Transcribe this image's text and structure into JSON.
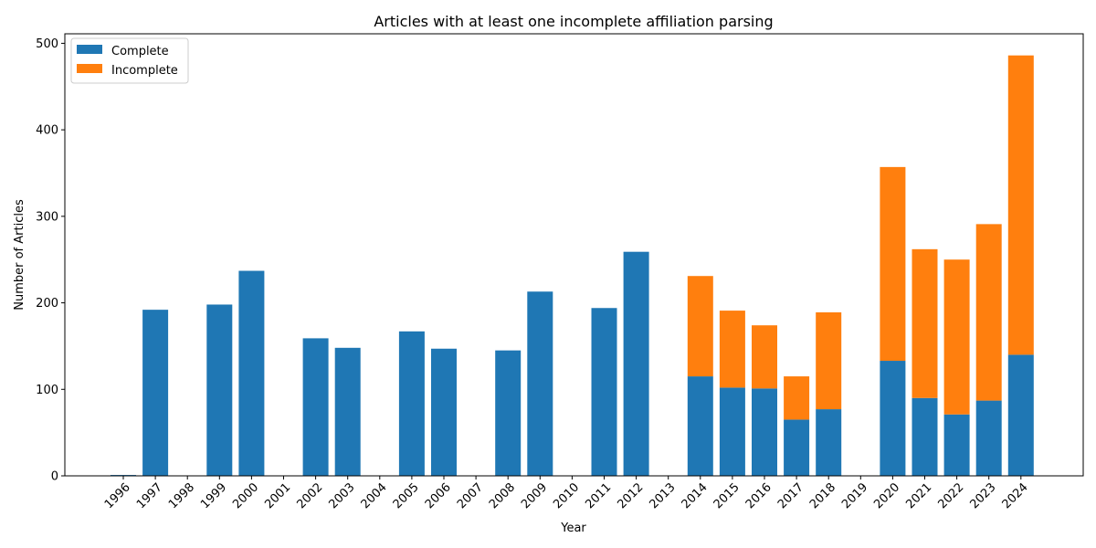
{
  "chart_data": {
    "type": "bar",
    "stacked": true,
    "title": "Articles with at least one incomplete affiliation parsing",
    "xlabel": "Year",
    "ylabel": "Number of Articles",
    "categories": [
      "1996",
      "1997",
      "1998",
      "1999",
      "2000",
      "2001",
      "2002",
      "2003",
      "2004",
      "2005",
      "2006",
      "2007",
      "2008",
      "2009",
      "2010",
      "2011",
      "2012",
      "2013",
      "2014",
      "2015",
      "2016",
      "2017",
      "2018",
      "2019",
      "2020",
      "2021",
      "2022",
      "2023",
      "2024"
    ],
    "series": [
      {
        "name": "Complete",
        "color": "#1f77b4",
        "values": [
          1,
          192,
          0,
          198,
          237,
          0,
          159,
          148,
          0,
          167,
          147,
          0,
          145,
          213,
          0,
          194,
          259,
          0,
          115,
          102,
          101,
          65,
          77,
          0,
          133,
          90,
          71,
          87,
          140
        ]
      },
      {
        "name": "Incomplete",
        "color": "#ff7f0e",
        "values": [
          0,
          0,
          0,
          0,
          0,
          0,
          0,
          0,
          0,
          0,
          0,
          0,
          0,
          0,
          0,
          0,
          0,
          0,
          116,
          89,
          73,
          50,
          112,
          0,
          224,
          172,
          179,
          204,
          346
        ]
      }
    ],
    "ylim": [
      0,
      511
    ],
    "yticks": [
      0,
      100,
      200,
      300,
      400,
      500
    ],
    "legend": "top-left",
    "grid": false
  }
}
